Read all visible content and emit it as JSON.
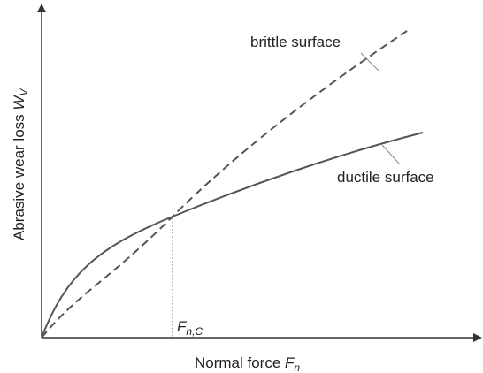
{
  "y_label": {
    "text": "Abrasive wear loss ",
    "symbol": "W",
    "subscript": "V"
  },
  "x_label": {
    "text": "Normal force ",
    "symbol": "F",
    "subscript": "n"
  },
  "critical_force": {
    "symbol": "F",
    "subscript": "n,C"
  },
  "curves": [
    {
      "label": "brittle surface"
    },
    {
      "label": "ductile surface"
    }
  ]
}
